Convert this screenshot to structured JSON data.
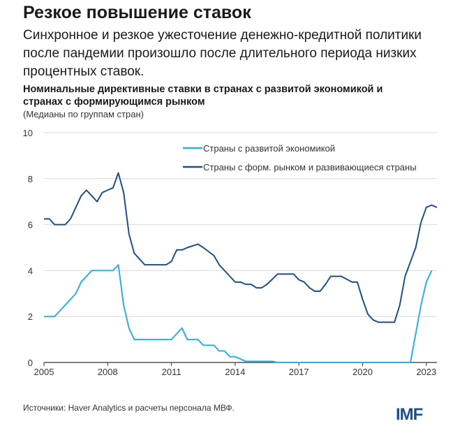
{
  "header": {
    "title": "Резкое повышение ставок",
    "subtitle": "Синхронное и резкое ужесточение денежно-кредитной политики после пандемии произошло после длительного периода низких процентных ставок."
  },
  "footer": {
    "source": "Источники: Haver Analytics и расчеты персонала МВФ.",
    "logo": "IMF"
  },
  "chart_data": {
    "type": "line",
    "title": "Номинальные директивные ставки в странах с развитой экономикой и странах с формирующимся рынком",
    "subtitle": "(Медианы по группам стран)",
    "xlabel": "",
    "ylabel": "",
    "xlim": [
      2005,
      2023.5
    ],
    "ylim": [
      0,
      10
    ],
    "xticks": [
      2005,
      2008,
      2011,
      2014,
      2017,
      2020,
      2023
    ],
    "yticks": [
      0,
      2,
      4,
      6,
      8,
      10
    ],
    "grid": true,
    "legend_position": "top-right",
    "series": [
      {
        "name": "Страны с развитой экономикой",
        "color": "#2eaee3",
        "points": [
          [
            2005,
            2
          ],
          [
            2005.5,
            2
          ],
          [
            2006.5,
            3
          ],
          [
            2006.75,
            3.5
          ],
          [
            2007.25,
            4
          ],
          [
            2008.25,
            4
          ],
          [
            2008.5,
            4.25
          ],
          [
            2008.75,
            2.5
          ],
          [
            2009,
            1.5
          ],
          [
            2009.25,
            1
          ],
          [
            2011,
            1
          ],
          [
            2011.5,
            1.5
          ],
          [
            2011.75,
            1
          ],
          [
            2012.25,
            1
          ],
          [
            2012.5,
            0.75
          ],
          [
            2013,
            0.75
          ],
          [
            2013.25,
            0.5
          ],
          [
            2013.5,
            0.5
          ],
          [
            2013.75,
            0.25
          ],
          [
            2014,
            0.25
          ],
          [
            2014.5,
            0.05
          ],
          [
            2015.75,
            0.05
          ],
          [
            2016,
            0
          ],
          [
            2022.25,
            0
          ],
          [
            2022.75,
            2.5
          ],
          [
            2023,
            3.5
          ],
          [
            2023.25,
            4
          ]
        ]
      },
      {
        "name": "Страны с форм. рынком и развивающиеся страны",
        "color": "#1f4e8c",
        "points": [
          [
            2005,
            6.25
          ],
          [
            2005.25,
            6.25
          ],
          [
            2005.5,
            6
          ],
          [
            2006,
            6
          ],
          [
            2006.25,
            6.25
          ],
          [
            2006.5,
            6.75
          ],
          [
            2006.75,
            7.25
          ],
          [
            2007,
            7.5
          ],
          [
            2007.25,
            7.25
          ],
          [
            2007.5,
            7
          ],
          [
            2007.75,
            7.4
          ],
          [
            2008,
            7.5
          ],
          [
            2008.25,
            7.6
          ],
          [
            2008.5,
            8.25
          ],
          [
            2008.75,
            7.4
          ],
          [
            2009,
            5.6
          ],
          [
            2009.25,
            4.75
          ],
          [
            2009.75,
            4.25
          ],
          [
            2010.75,
            4.25
          ],
          [
            2011,
            4.4
          ],
          [
            2011.25,
            4.9
          ],
          [
            2011.5,
            4.9
          ],
          [
            2011.75,
            5
          ],
          [
            2012.25,
            5.15
          ],
          [
            2012.5,
            5
          ],
          [
            2013,
            4.65
          ],
          [
            2013.25,
            4.25
          ],
          [
            2013.75,
            3.75
          ],
          [
            2014,
            3.5
          ],
          [
            2014.25,
            3.5
          ],
          [
            2014.5,
            3.4
          ],
          [
            2014.75,
            3.4
          ],
          [
            2015,
            3.25
          ],
          [
            2015.25,
            3.25
          ],
          [
            2015.5,
            3.4
          ],
          [
            2016,
            3.85
          ],
          [
            2016.75,
            3.85
          ],
          [
            2017,
            3.6
          ],
          [
            2017.25,
            3.5
          ],
          [
            2017.5,
            3.25
          ],
          [
            2017.75,
            3.1
          ],
          [
            2018,
            3.1
          ],
          [
            2018.25,
            3.4
          ],
          [
            2018.5,
            3.75
          ],
          [
            2019,
            3.75
          ],
          [
            2019.5,
            3.5
          ],
          [
            2019.75,
            3.5
          ],
          [
            2020,
            2.75
          ],
          [
            2020.25,
            2.1
          ],
          [
            2020.5,
            1.85
          ],
          [
            2020.75,
            1.75
          ],
          [
            2021.5,
            1.75
          ],
          [
            2021.75,
            2.5
          ],
          [
            2022,
            3.75
          ],
          [
            2022.5,
            5
          ],
          [
            2022.75,
            6.1
          ],
          [
            2023,
            6.75
          ],
          [
            2023.25,
            6.85
          ],
          [
            2023.5,
            6.75
          ]
        ]
      }
    ]
  }
}
